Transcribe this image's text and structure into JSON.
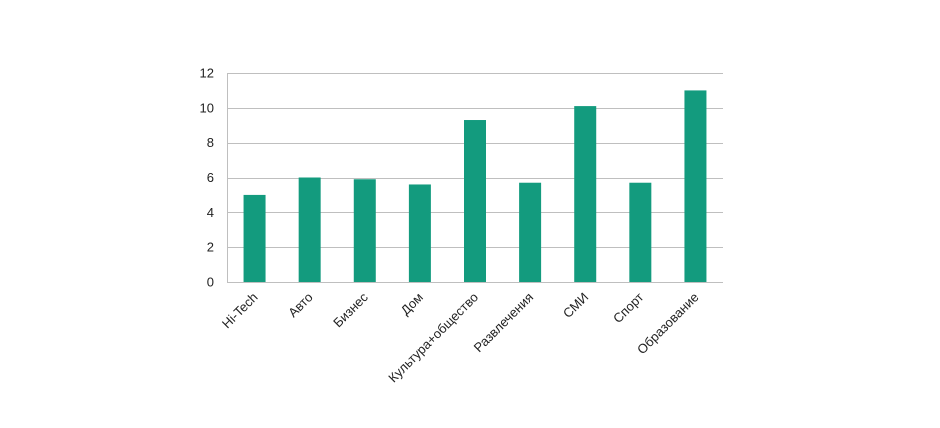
{
  "chart_data": {
    "type": "bar",
    "title": "",
    "xlabel": "",
    "ylabel": "",
    "categories": [
      "Hi-Tech",
      "Авто",
      "Бизнес",
      "Дом",
      "Культура+общество",
      "Развлечения",
      "СМИ",
      "Спорт",
      "Образование"
    ],
    "values": [
      5.0,
      6.0,
      5.9,
      5.6,
      9.3,
      5.7,
      10.1,
      5.7,
      11.0
    ],
    "ylim": [
      0,
      12
    ],
    "yticks": [
      0,
      2,
      4,
      6,
      8,
      10,
      12
    ],
    "grid": true,
    "legend": "none",
    "bar_color": "#139B7E",
    "grid_color": "#BFBFBF",
    "axis_color": "#BFBFBF"
  }
}
